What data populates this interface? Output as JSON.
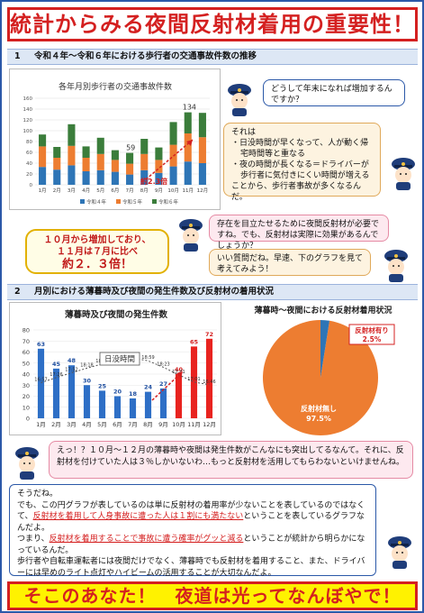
{
  "title": "統計からみる夜間反射材着用の重要性！",
  "section1": {
    "num": "1",
    "heading": "令和４年～令和６年における歩行者の交通事故件数の推移",
    "chart_title": "各年月別歩行者の交通事故件数",
    "annotation": "約2.3倍",
    "label_59": "59",
    "label_134": "134"
  },
  "bubble1": "どうして年末になれば増加するんですか？",
  "bubble2_lines": [
    "それは",
    "・日没時間が早くなって、人が動く帰",
    "宅時間等と重なる",
    "・夜の時間が長くなる＝ドライバーが",
    "歩行者に気付きにくい時間が増える",
    "ことから、歩行者事故が多くなるんだ。"
  ],
  "callout1": {
    "line1": "１０月から増加しており、",
    "line2": "１１月は７月に比べ",
    "line3": "約２．３倍！"
  },
  "bubble3": "存在を目立たせるために夜間反射材が必要ですね。でも、反射材は実際に効果があるんでしょうか？",
  "bubble4": "いい質問だね。早速、下のグラフを見て考えてみよう！",
  "section2": {
    "num": "2",
    "heading": "月別における薄暮時及び夜間の発生件数及び反射材の着用状況",
    "chart_title": "薄暮時及び夜間の発生件数",
    "sunset_label": "日没時間",
    "pie_title": "薄暮時～夜間における反射材着用状況",
    "pie_yes_label": "反射材有り",
    "pie_yes_value": "2.5%",
    "pie_no_label": "反射材無し",
    "pie_no_value": "97.5%"
  },
  "bubble5": "えっ！？１０月～１２月の薄暮時や夜間は発生件数がこんなにも突出してるなんて。それに、反射材を付けていた人は３％しかいないわ…もっと反射材を活用してもらわないといけませんね。",
  "bottom_text": {
    "l1": "そうだね。",
    "l2": "でも、この円グラフが表しているのは単に反射材の着用率が少ないことを表しているのではなくて、",
    "l2u": "反射材を着用して人身事故に遭った人は１割にも満たない",
    "l2b": "ということを表しているグラフなんだよ。",
    "l3a": "つまり、",
    "l3u": "反射材を着用することで事故に遭う確率がグッと減る",
    "l3b": "ということが統計から明らかになっているんだ。",
    "l4": "歩行者や自転車運転者には夜間だけでなく、薄暮時でも反射材を着用すること、また、ドライバーには早めのライト点灯やハイビームの活用することが大切なんだよ。"
  },
  "footer": "そこのあなた！　夜道は光ってなんぼやで！",
  "colors": {
    "red": "#d42020",
    "blue": "#2b58a8",
    "orange": "#ed7d31",
    "navy": "#2e75b6",
    "green": "#3b7d3b"
  },
  "chart_data": [
    {
      "type": "bar",
      "title": "各年月別歩行者の交通事故件数",
      "stacked": true,
      "categories": [
        "1月",
        "2月",
        "3月",
        "4月",
        "5月",
        "6月",
        "7月",
        "8月",
        "9月",
        "10月",
        "11月",
        "12月"
      ],
      "ylim": [
        0,
        160
      ],
      "yticks": [
        0,
        20,
        40,
        60,
        80,
        100,
        120,
        140,
        160
      ],
      "series": [
        {
          "name": "令和４年",
          "color": "#2e75b6",
          "values": [
            33,
            28,
            36,
            25,
            27,
            24,
            19,
            27,
            22,
            34,
            43,
            40
          ]
        },
        {
          "name": "令和５年",
          "color": "#ed7d31",
          "values": [
            38,
            22,
            36,
            25,
            30,
            22,
            20,
            30,
            24,
            40,
            52,
            48
          ]
        },
        {
          "name": "令和６年",
          "color": "#3b7d3b",
          "values": [
            22,
            20,
            40,
            21,
            30,
            18,
            20,
            28,
            23,
            42,
            39,
            45
          ]
        }
      ],
      "trend_points": [
        {
          "x": "7月",
          "y": 59
        },
        {
          "x": "11月",
          "y": 134
        }
      ],
      "legend": "bottom"
    },
    {
      "type": "bar",
      "title": "薄暮時及び夜間の発生件数",
      "categories": [
        "1月",
        "2月",
        "3月",
        "4月",
        "5月",
        "6月",
        "7月",
        "8月",
        "9月",
        "10月",
        "11月",
        "12月"
      ],
      "values": [
        63,
        45,
        48,
        30,
        25,
        20,
        18,
        24,
        27,
        40,
        65,
        72
      ],
      "ylim": [
        0,
        80
      ],
      "yticks": [
        0,
        10,
        20,
        30,
        40,
        50,
        60,
        70,
        80
      ],
      "sunset_times": [
        "16:57",
        "17:26",
        "17:52",
        "18:18",
        "18:41",
        "19:05",
        "19:14",
        "18:59",
        "18:23",
        "17:41",
        "17:01",
        "16:46"
      ]
    },
    {
      "type": "pie",
      "title": "薄暮時～夜間における反射材着用状況",
      "labels": [
        "反射材有り",
        "反射材無し"
      ],
      "values": [
        2.5,
        97.5
      ],
      "colors": [
        "#2e75b6",
        "#ed7d31"
      ]
    }
  ]
}
